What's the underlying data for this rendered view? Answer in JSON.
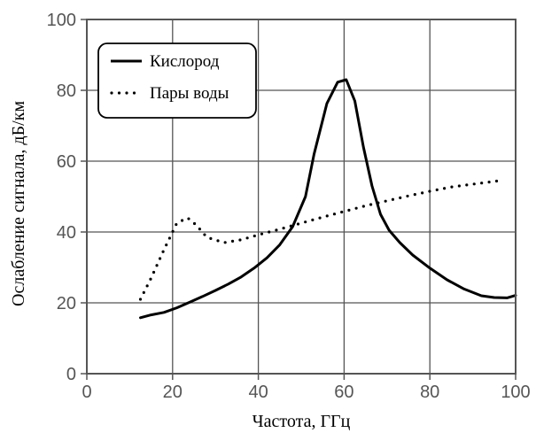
{
  "chart_data": {
    "type": "line",
    "xlabel": "Частота, ГГц",
    "ylabel": "Ослабление сигнала, дБ/км",
    "xlim": [
      0,
      100
    ],
    "ylim": [
      0,
      100
    ],
    "x_ticks": [
      "0",
      "20",
      "40",
      "60",
      "80",
      "100"
    ],
    "y_ticks": [
      "0",
      "20",
      "40",
      "60",
      "80",
      "100"
    ],
    "grid": true,
    "legend_position": "top-left",
    "series": [
      {
        "name": "Кислород",
        "style": "solid",
        "color": "#000000",
        "points": [
          [
            12.5,
            15.8
          ],
          [
            15,
            16.6
          ],
          [
            18,
            17.3
          ],
          [
            21,
            18.6
          ],
          [
            24,
            20.2
          ],
          [
            27,
            21.8
          ],
          [
            30,
            23.5
          ],
          [
            33,
            25.3
          ],
          [
            36,
            27.3
          ],
          [
            39,
            29.8
          ],
          [
            42,
            32.7
          ],
          [
            45,
            36.4
          ],
          [
            48,
            41.5
          ],
          [
            51,
            50
          ],
          [
            53,
            62
          ],
          [
            56,
            76.3
          ],
          [
            58.5,
            82.3
          ],
          [
            60.5,
            83
          ],
          [
            62.5,
            77
          ],
          [
            64.5,
            64
          ],
          [
            66.5,
            53
          ],
          [
            68.5,
            45
          ],
          [
            70.5,
            40.5
          ],
          [
            73,
            37
          ],
          [
            76,
            33.5
          ],
          [
            80,
            29.8
          ],
          [
            84,
            26.5
          ],
          [
            88,
            23.9
          ],
          [
            92,
            22
          ],
          [
            95,
            21.5
          ],
          [
            98,
            21.4
          ],
          [
            100,
            22.1
          ]
        ]
      },
      {
        "name": "Пары воды",
        "style": "dotted",
        "color": "#000000",
        "points": [
          [
            12.5,
            21
          ],
          [
            15,
            27
          ],
          [
            18,
            35
          ],
          [
            21,
            42.5
          ],
          [
            23.5,
            44
          ],
          [
            25.5,
            42
          ],
          [
            28,
            38.5
          ],
          [
            32,
            37
          ],
          [
            36,
            37.8
          ],
          [
            40,
            39.2
          ],
          [
            45,
            40.8
          ],
          [
            50,
            42.5
          ],
          [
            55,
            44.2
          ],
          [
            60,
            45.8
          ],
          [
            65,
            47.4
          ],
          [
            70,
            48.8
          ],
          [
            75,
            50.2
          ],
          [
            80,
            51.5
          ],
          [
            85,
            52.7
          ],
          [
            90,
            53.5
          ],
          [
            97,
            54.6
          ]
        ]
      }
    ]
  }
}
